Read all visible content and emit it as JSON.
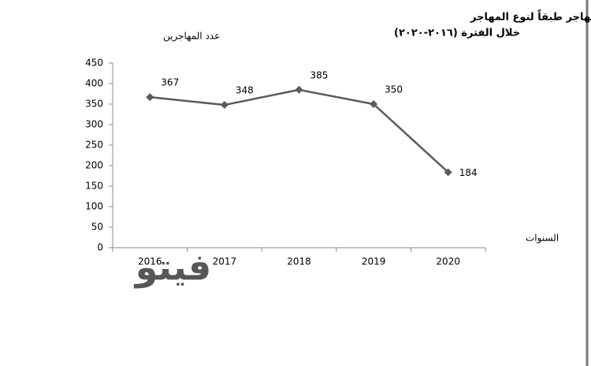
{
  "chart_data": {
    "type": "line",
    "title": "تطور أعداد المهاجرين والذين إكتسبوا صفة المهاجر طبقاً لنوع المهاجر",
    "subtitle": "خلال الفترة (٢٠١٦-٢٠٢٠)",
    "y_label": "عدد المهاجرين",
    "x_label": "السنوات",
    "watermark": "فيتو",
    "categories": [
      "2016",
      "2017",
      "2018",
      "2019",
      "2020"
    ],
    "values": [
      367,
      348,
      385,
      350,
      184
    ],
    "color": "#5b5b5b",
    "ylim": [
      0,
      450
    ],
    "yticks": [
      0,
      50,
      100,
      150,
      200,
      250,
      300,
      350,
      400,
      450
    ],
    "grid": false
  }
}
